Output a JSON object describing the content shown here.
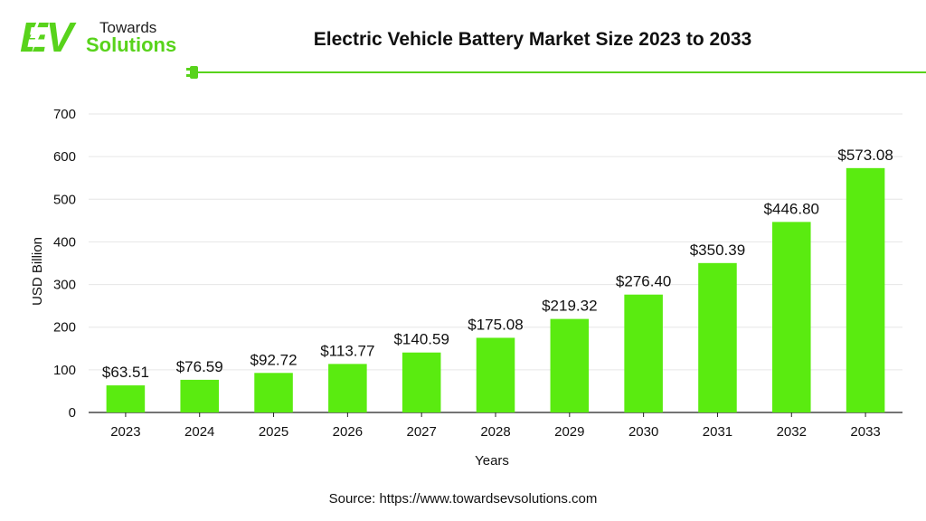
{
  "brand": {
    "logo_ev": "EV",
    "logo_top": "Towards",
    "logo_bottom": "Solutions",
    "accent_color": "#58d31b",
    "bar_color": "#5aeb10"
  },
  "source": "Source: https://www.towardsevsolutions.com",
  "chart_data": {
    "type": "bar",
    "title": "Electric Vehicle Battery Market Size 2023 to 2033",
    "xlabel": "Years",
    "ylabel": "USD Billion",
    "categories": [
      "2023",
      "2024",
      "2025",
      "2026",
      "2027",
      "2028",
      "2029",
      "2030",
      "2031",
      "2032",
      "2033"
    ],
    "values": [
      63.51,
      76.59,
      92.72,
      113.77,
      140.59,
      175.08,
      219.32,
      276.4,
      350.39,
      446.8,
      573.08
    ],
    "value_labels": [
      "$63.51",
      "$76.59",
      "$92.72",
      "$113.77",
      "$140.59",
      "$175.08",
      "$219.32",
      "$276.40",
      "$350.39",
      "$446.80",
      "$573.08"
    ],
    "yticks": [
      0,
      100,
      200,
      300,
      400,
      500,
      600,
      700
    ],
    "ylim": [
      0,
      700
    ],
    "grid": true
  }
}
